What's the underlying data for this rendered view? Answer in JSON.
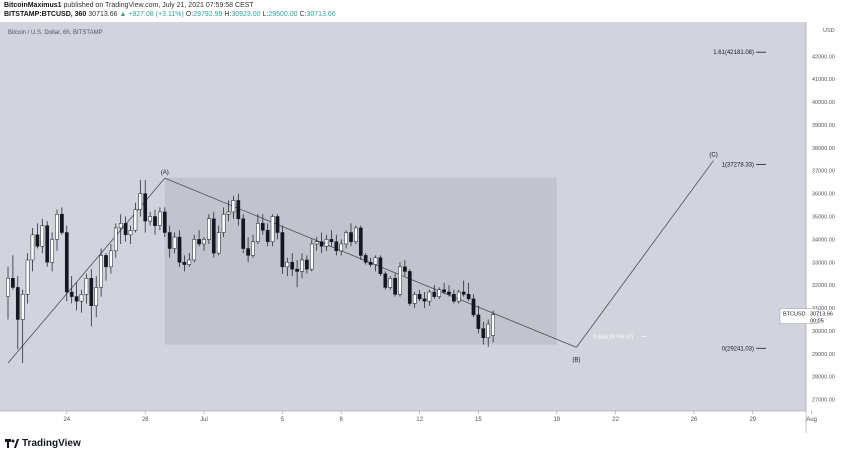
{
  "header": {
    "publisher_line_pre": "BitcoinMaximus1",
    "publisher_line_post": " published on TradingView.com, July 21, 2021 07:59:58 CEST",
    "symbol": "BITSTAMP:BTCUSD, 360",
    "last": "30713.66",
    "change": "▲ +927.08 (+3.11%)",
    "open": "29792.99",
    "high": "30923.00",
    "low": "29500.00",
    "close": "30713.66",
    "label_open": "O:",
    "label_high": "H:",
    "label_low": "L:",
    "label_close": "C:"
  },
  "footer": {
    "logo": "TradingView"
  },
  "colors": {
    "background": "#d1d4dc",
    "up": "#ffffff",
    "down": "#131722",
    "box": "#c1c4cc",
    "line": "#4a4d56"
  },
  "chart_data": {
    "type": "candlestick",
    "title": "Bitcoin / U.S. Dollar, 6h, BITSTAMP",
    "currency": "USD",
    "ylim": [
      26500,
      43500
    ],
    "y_ticks": [
      27000,
      28000,
      29000,
      30000,
      31000,
      32000,
      33000,
      34000,
      35000,
      36000,
      37000,
      38000,
      39000,
      40000,
      41000,
      42000
    ],
    "y_tick_labels": [
      "27000.00",
      "28000.00",
      "29000.00",
      "30000.00",
      "31000.00",
      "32000.00",
      "33000.00",
      "34000.00",
      "35000.00",
      "36000.00",
      "37000.00",
      "38000.00",
      "39000.00",
      "40000.00",
      "41000.00",
      "42000.00"
    ],
    "x_ticks": [
      "24",
      "28",
      "Jul",
      "5",
      "8",
      "12",
      "15",
      "19",
      "22",
      "26",
      "29",
      "Aug"
    ],
    "x_tick_dates": [
      "2021-06-24",
      "2021-06-28",
      "2021-07-01",
      "2021-07-05",
      "2021-07-08",
      "2021-07-12",
      "2021-07-15",
      "2021-07-19",
      "2021-07-22",
      "2021-07-26",
      "2021-07-29",
      "2021-08-01"
    ],
    "x_start": "2021-06-21",
    "current_price": {
      "symbol": "BTCUSD",
      "price": "30713.66",
      "countdown": "00:05"
    },
    "candles": [
      [
        31500,
        32800,
        30500,
        32300
      ],
      [
        32300,
        33300,
        31800,
        31900
      ],
      [
        31900,
        32400,
        29200,
        30500
      ],
      [
        30500,
        31800,
        28600,
        31600
      ],
      [
        31600,
        33400,
        31200,
        33100
      ],
      [
        33100,
        34500,
        32600,
        34200
      ],
      [
        34200,
        34700,
        33600,
        33700
      ],
      [
        33700,
        34900,
        33400,
        34600
      ],
      [
        34600,
        34800,
        32800,
        33000
      ],
      [
        33000,
        34300,
        32600,
        34000
      ],
      [
        34000,
        35300,
        33500,
        35100
      ],
      [
        35100,
        35400,
        34200,
        34300
      ],
      [
        34300,
        34600,
        31300,
        31700
      ],
      [
        31700,
        32400,
        31200,
        31500
      ],
      [
        31500,
        32100,
        30900,
        31300
      ],
      [
        31300,
        31800,
        30800,
        31600
      ],
      [
        31600,
        32500,
        31200,
        32300
      ],
      [
        32300,
        32700,
        30200,
        31100
      ],
      [
        31100,
        32400,
        30600,
        31900
      ],
      [
        31900,
        33600,
        31500,
        33300
      ],
      [
        33300,
        33400,
        32200,
        32800
      ],
      [
        32800,
        33800,
        32500,
        33500
      ],
      [
        33500,
        34700,
        33200,
        34500
      ],
      [
        34500,
        35100,
        33800,
        34700
      ],
      [
        34700,
        35000,
        33900,
        34200
      ],
      [
        34200,
        34600,
        33800,
        34400
      ],
      [
        34400,
        35600,
        34300,
        35300
      ],
      [
        35300,
        36600,
        35000,
        36000
      ],
      [
        36000,
        36600,
        34300,
        34800
      ],
      [
        34800,
        35200,
        34600,
        35000
      ],
      [
        35000,
        35300,
        34200,
        34600
      ],
      [
        34600,
        35400,
        34400,
        35200
      ],
      [
        35200,
        35400,
        34100,
        34300
      ],
      [
        34300,
        34600,
        33200,
        33600
      ],
      [
        33600,
        34300,
        33400,
        34100
      ],
      [
        34100,
        34400,
        32800,
        33000
      ],
      [
        33000,
        33300,
        32600,
        32900
      ],
      [
        32900,
        33400,
        32800,
        33100
      ],
      [
        33100,
        34200,
        33000,
        34000
      ],
      [
        34000,
        34400,
        33700,
        33800
      ],
      [
        33800,
        34100,
        33500,
        34000
      ],
      [
        34000,
        35100,
        33800,
        34900
      ],
      [
        34900,
        35200,
        33200,
        33400
      ],
      [
        33400,
        34600,
        33300,
        34300
      ],
      [
        34300,
        35400,
        34100,
        35100
      ],
      [
        35100,
        35700,
        34800,
        35200
      ],
      [
        35200,
        35900,
        34900,
        35700
      ],
      [
        35700,
        36000,
        34600,
        34900
      ],
      [
        34900,
        35100,
        33400,
        33600
      ],
      [
        33600,
        34100,
        33000,
        33300
      ],
      [
        33300,
        34200,
        33200,
        33900
      ],
      [
        33900,
        35100,
        33800,
        34700
      ],
      [
        34700,
        35100,
        34200,
        34400
      ],
      [
        34400,
        34700,
        33700,
        33900
      ],
      [
        33900,
        35100,
        33700,
        35000
      ],
      [
        35000,
        35100,
        34000,
        34300
      ],
      [
        34300,
        34600,
        32500,
        32800
      ],
      [
        32800,
        33200,
        32400,
        33000
      ],
      [
        33000,
        33400,
        32400,
        32700
      ],
      [
        32700,
        33100,
        31900,
        32600
      ],
      [
        32600,
        33400,
        32300,
        33100
      ],
      [
        33100,
        33300,
        32500,
        32700
      ],
      [
        32700,
        34000,
        32600,
        33800
      ],
      [
        33800,
        34100,
        33500,
        33900
      ],
      [
        33900,
        34300,
        33400,
        33700
      ],
      [
        33700,
        34200,
        33500,
        34000
      ],
      [
        34000,
        34400,
        33700,
        33900
      ],
      [
        33900,
        34200,
        33300,
        33500
      ],
      [
        33500,
        34000,
        33300,
        33800
      ],
      [
        33800,
        34400,
        33600,
        34300
      ],
      [
        34300,
        34700,
        33700,
        33900
      ],
      [
        33900,
        34600,
        33800,
        34500
      ],
      [
        34500,
        34600,
        33100,
        33300
      ],
      [
        33300,
        33400,
        32900,
        33000
      ],
      [
        33000,
        33200,
        32800,
        32900
      ],
      [
        32900,
        33300,
        32600,
        33200
      ],
      [
        33200,
        33300,
        32400,
        32500
      ],
      [
        32500,
        32600,
        31800,
        31900
      ],
      [
        31900,
        32400,
        31800,
        32300
      ],
      [
        32300,
        32500,
        31500,
        31600
      ],
      [
        31600,
        33000,
        31500,
        32800
      ],
      [
        32800,
        33100,
        32400,
        32600
      ],
      [
        32600,
        32700,
        31100,
        31200
      ],
      [
        31200,
        31700,
        31000,
        31600
      ],
      [
        31600,
        31800,
        31300,
        31400
      ],
      [
        31400,
        31700,
        31000,
        31300
      ],
      [
        31300,
        31800,
        31100,
        31700
      ],
      [
        31700,
        32000,
        31400,
        31500
      ],
      [
        31500,
        31900,
        31400,
        31800
      ],
      [
        31800,
        32100,
        31600,
        31700
      ],
      [
        31700,
        32000,
        31500,
        31600
      ],
      [
        31600,
        31800,
        31200,
        31300
      ],
      [
        31300,
        31800,
        31200,
        31700
      ],
      [
        31700,
        32200,
        31500,
        31600
      ],
      [
        31600,
        32100,
        31300,
        31400
      ],
      [
        31400,
        31600,
        30600,
        30700
      ],
      [
        30700,
        31100,
        29900,
        30100
      ],
      [
        30100,
        30400,
        29400,
        29700
      ],
      [
        29700,
        30500,
        29300,
        30300
      ],
      [
        29800,
        30900,
        29500,
        30713
      ]
    ],
    "annotations": [
      {
        "label": "(A)",
        "date": "2021-06-29",
        "price": 36675
      },
      {
        "label": "(B)",
        "date": "2021-07-20",
        "price": 29280
      },
      {
        "label": "(C)",
        "date": "2021-07-27",
        "price": 37450
      }
    ],
    "fib_levels": [
      {
        "label": "1.61(42181.08)",
        "price": 42181.08
      },
      {
        "label": "1(37278.33)",
        "price": 37278.33
      },
      {
        "label": "0(29241.03)",
        "price": 29241.03
      }
    ],
    "box_label": "0.854(29759.07)",
    "box_price": 29759.07,
    "box_range": {
      "from": "2021-06-29",
      "to": "2021-07-19",
      "high": 36700,
      "low": 29400
    },
    "trendlines": [
      {
        "from": {
          "date": "2021-06-21",
          "price": 28600
        },
        "to": {
          "date": "2021-06-29",
          "price": 36675
        }
      },
      {
        "from": {
          "date": "2021-06-29",
          "price": 36675
        },
        "to": {
          "date": "2021-07-20",
          "price": 29280
        }
      },
      {
        "from": {
          "date": "2021-07-20",
          "price": 29280
        },
        "to": {
          "date": "2021-07-27",
          "price": 37450
        }
      }
    ]
  }
}
